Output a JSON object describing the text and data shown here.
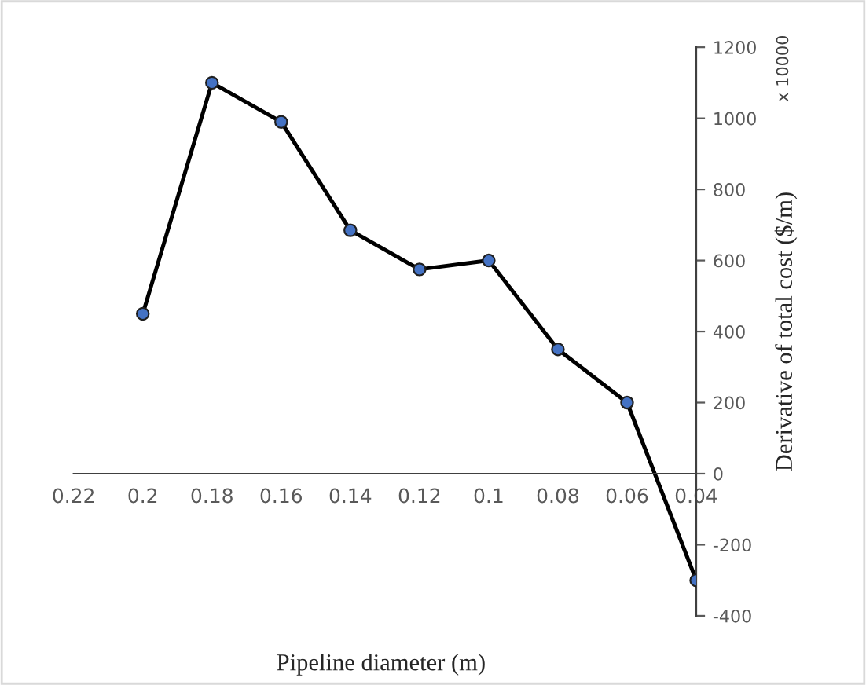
{
  "chart_data": {
    "type": "line",
    "xlabel": "Pipeline diameter (m)",
    "ylabel": "Derivative of total cost ($/m)",
    "annotations": [
      "x 10000"
    ],
    "x": [
      0.2,
      0.18,
      0.16,
      0.14,
      0.12,
      0.1,
      0.08,
      0.06,
      0.04
    ],
    "series": [
      {
        "color": "#000000",
        "values": [
          450,
          1100,
          990,
          685,
          575,
          600,
          350,
          200,
          -300
        ]
      }
    ],
    "marker": "circle",
    "line_style": "solid",
    "grid": false,
    "legend": false,
    "xlim": [
      0.22,
      0.04
    ],
    "xticks": [
      0.22,
      0.2,
      0.18,
      0.16,
      0.14,
      0.12,
      0.1,
      0.08,
      0.06,
      0.04
    ],
    "ylim": [
      -400,
      1200
    ],
    "yticks": [
      -400,
      -200,
      0,
      200,
      400,
      600,
      800,
      1000,
      1200
    ]
  }
}
